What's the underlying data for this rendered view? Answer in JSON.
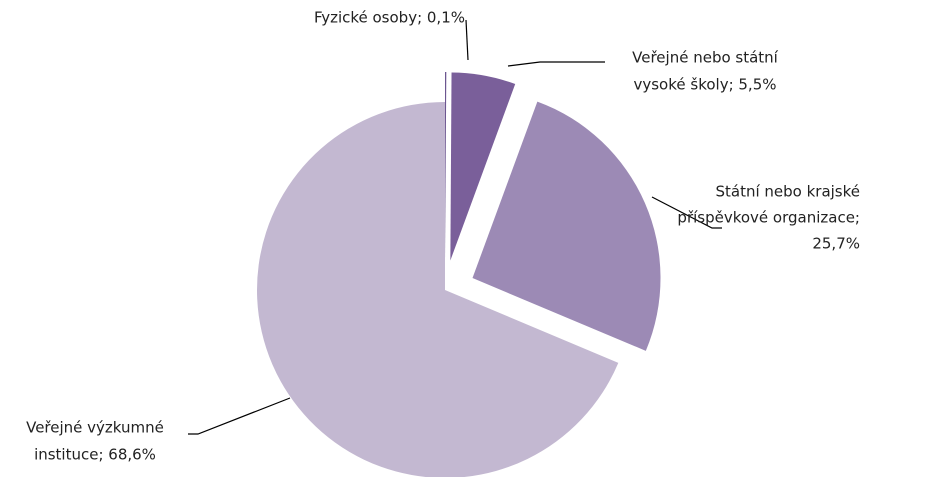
{
  "chart_data": {
    "type": "pie",
    "labels": [
      [
        "Fyzické osoby; 0,1%"
      ],
      [
        "Veřejné nebo státní",
        "vysoké školy; 5,5%"
      ],
      [
        "Státní nebo krajské",
        "příspěvkové organizace;",
        "25,7%"
      ],
      [
        "Veřejné výzkumné",
        "instituce; 68,6%"
      ]
    ],
    "values": [
      0.1,
      5.5,
      25.7,
      68.6
    ],
    "colors": [
      "#5e4585",
      "#7a5f9a",
      "#9c8ab5",
      "#c3b8d1"
    ]
  }
}
